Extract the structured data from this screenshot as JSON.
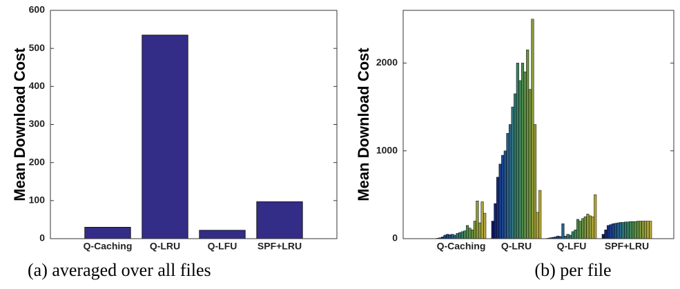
{
  "chart_data": [
    {
      "type": "bar",
      "caption": "(a) averaged over all files",
      "ylabel": "Mean Download Cost",
      "categories": [
        "Q-Caching",
        "Q-LRU",
        "Q-LFU",
        "SPF+LRU"
      ],
      "values": [
        30,
        535,
        22,
        97
      ],
      "color": "#332d87",
      "ylim": [
        0,
        600
      ],
      "yticks": [
        0,
        100,
        200,
        300,
        400,
        500,
        600
      ]
    },
    {
      "type": "grouped_bar",
      "caption": "(b) per file",
      "ylabel": "Mean Download Cost",
      "categories": [
        "Q-Caching",
        "Q-LRU",
        "Q-LFU",
        "SPF+LRU"
      ],
      "values": [
        [
          5,
          10,
          20,
          40,
          50,
          45,
          50,
          40,
          60,
          70,
          80,
          90,
          150,
          120,
          100,
          200,
          430,
          180,
          420,
          290
        ],
        [
          200,
          400,
          700,
          850,
          950,
          1000,
          1200,
          1300,
          1500,
          1650,
          2000,
          1800,
          2000,
          1900,
          2150,
          1700,
          2500,
          1300,
          300,
          550
        ],
        [
          5,
          10,
          15,
          20,
          30,
          25,
          170,
          30,
          50,
          40,
          80,
          100,
          220,
          200,
          230,
          250,
          280,
          260,
          250,
          500
        ],
        [
          50,
          100,
          150,
          160,
          170,
          175,
          180,
          185,
          185,
          190,
          190,
          195,
          195,
          195,
          200,
          200,
          200,
          200,
          200,
          200
        ]
      ],
      "colors": [
        "#111a5e",
        "#142470",
        "#163080",
        "#1a3c8a",
        "#1e4890",
        "#235490",
        "#28608c",
        "#2c6a84",
        "#30727a",
        "#347a6e",
        "#3a8062",
        "#428658",
        "#4e8a4e",
        "#5a8e46",
        "#6a9240",
        "#7a963c",
        "#8a9a3a",
        "#9a9e38",
        "#aaa238",
        "#b8a63a"
      ],
      "ylim": [
        0,
        2600
      ],
      "yticks": [
        0,
        1000,
        2000
      ]
    }
  ]
}
